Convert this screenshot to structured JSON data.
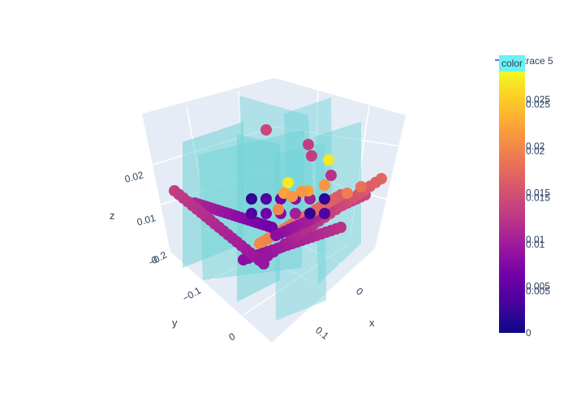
{
  "chart_data": {
    "type": "scatter",
    "subtype": "3d-scatter-with-planes",
    "axes": {
      "x": {
        "label": "x",
        "ticks": [
          "0",
          "0.1"
        ]
      },
      "y": {
        "label": "y",
        "ticks": [
          "−0.2",
          "−0.1",
          "0"
        ]
      },
      "z": {
        "label": "z",
        "ticks": [
          "0",
          "0.01",
          "0.02"
        ]
      }
    },
    "legend": {
      "entries": [
        {
          "label": "trace 5"
        }
      ],
      "placement": "top-right"
    },
    "colorbar": {
      "title": "color",
      "range": [
        0,
        0.028
      ],
      "ticks_primary": [
        "0",
        "0.005",
        "0.01",
        "0.015",
        "0.02",
        "0.025"
      ],
      "ticks_secondary": [
        "0.005",
        "0.01",
        "0.015",
        "0.02",
        "0.025"
      ],
      "colorscale": [
        "#0d0887",
        "#46039f",
        "#7201a8",
        "#9c179e",
        "#bd3786",
        "#d8576b",
        "#ed7953",
        "#fb9f3a",
        "#fdca26",
        "#f0f921"
      ]
    },
    "plane_color": "#6fd3d6",
    "background_color": "#e5ecf6",
    "grid": true
  }
}
